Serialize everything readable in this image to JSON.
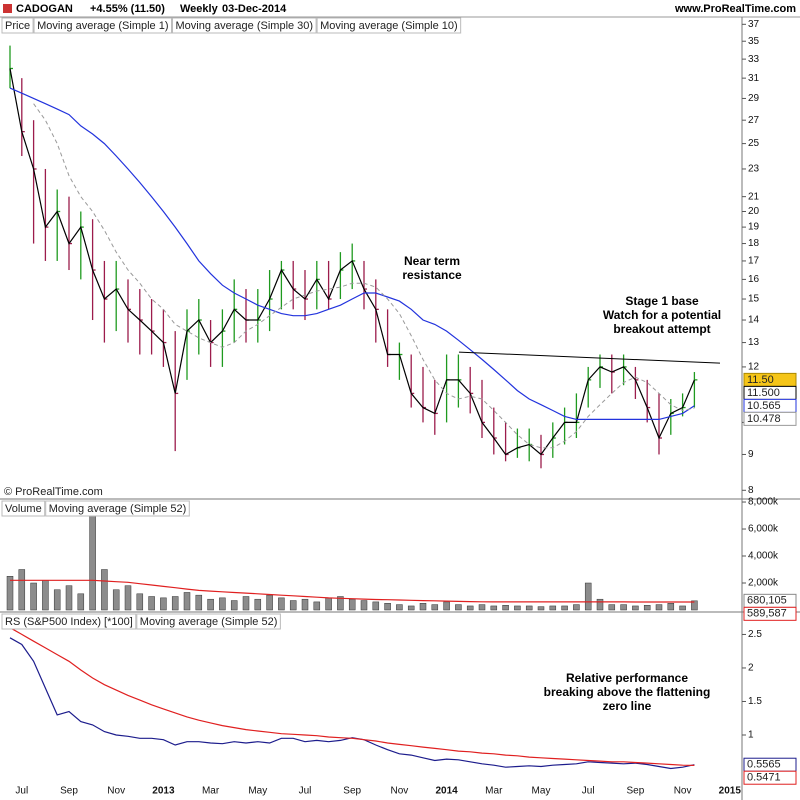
{
  "header": {
    "symbol": "CADOGAN",
    "change": "+4.55% (11.50)",
    "period": "Weekly",
    "date": "03-Dec-2014",
    "site": "www.ProRealTime.com"
  },
  "watermark": "© ProRealTime.com",
  "chart_data": [
    {
      "type": "ohlc",
      "name": "Price",
      "log_scale": true,
      "ylim": [
        7.8,
        37.9
      ],
      "yticks": [
        8,
        9,
        10,
        12,
        13,
        14,
        15,
        16,
        17,
        18,
        19,
        20,
        21,
        23,
        25,
        27,
        29,
        31,
        33,
        35,
        37
      ],
      "up_color": "#1f9a1f",
      "down_color": "#9c1c4c",
      "tag_color": "#f5c518",
      "high": [
        34.5,
        31,
        27,
        23,
        21.5,
        21,
        20,
        19.5,
        17,
        17,
        16,
        15.5,
        15,
        14.5,
        13.5,
        14.5,
        15,
        14,
        14.5,
        16,
        15.5,
        15.5,
        16.5,
        17,
        17,
        16.5,
        17,
        17,
        17.5,
        18,
        17,
        16,
        14.5,
        13,
        12.5,
        12,
        11.5,
        12.5,
        12.5,
        12,
        11.5,
        10.5,
        10,
        9.8,
        9.8,
        9.6,
        10,
        10.5,
        11,
        12,
        12.5,
        12.5,
        12.5,
        12,
        11.5,
        11,
        10.8,
        11,
        11.8,
        null,
        null,
        null
      ],
      "low": [
        30,
        24,
        18,
        17,
        17,
        16.5,
        16,
        14,
        13,
        13.5,
        13,
        12.5,
        12.5,
        12,
        9.1,
        11.5,
        12.5,
        12,
        12,
        13,
        13,
        13,
        13.5,
        14.5,
        14.5,
        14,
        14.5,
        14.5,
        15,
        15.5,
        14.5,
        13,
        12,
        11.5,
        10.5,
        10,
        9.6,
        10,
        10.5,
        10.3,
        9.5,
        9,
        8.8,
        8.9,
        8.8,
        8.6,
        8.9,
        9.3,
        9.5,
        10.5,
        11.2,
        11,
        11.3,
        10.8,
        10,
        9,
        9.6,
        10.2,
        10.5,
        null,
        null,
        null
      ],
      "close": [
        32,
        26,
        23,
        19,
        20,
        18,
        19,
        16.5,
        15,
        15.5,
        14.5,
        14,
        13.5,
        13,
        11,
        13.5,
        14,
        13,
        13.5,
        14.5,
        14,
        14,
        15,
        16.5,
        15.5,
        15,
        16,
        15,
        16.5,
        17,
        15.5,
        14.5,
        12.5,
        12.5,
        11,
        10.5,
        10.3,
        11.5,
        11.5,
        11,
        10,
        9.5,
        9,
        9.2,
        9.3,
        9,
        9.5,
        10,
        10,
        11.5,
        12,
        11.8,
        12,
        11.5,
        10.5,
        9.5,
        10.3,
        10.5,
        11.5,
        null,
        null,
        null
      ],
      "last_label": "11.50",
      "series": [
        {
          "name": "Moving average (Simple 1)",
          "color": "#000000",
          "legend_color": "#1c1c8c",
          "dash": false,
          "last_label": "11.500",
          "values": [
            32,
            26,
            23,
            19,
            20,
            18,
            19,
            16.5,
            15,
            15.5,
            14.5,
            14,
            13.5,
            13,
            11,
            13.5,
            14,
            13,
            13.5,
            14.5,
            14,
            14,
            15,
            16.5,
            15.5,
            15,
            16,
            15,
            16.5,
            17,
            15.5,
            14.5,
            12.5,
            12.5,
            11,
            10.5,
            10.3,
            11.5,
            11.5,
            11,
            10,
            9.5,
            9,
            9.2,
            9.3,
            9,
            9.5,
            10,
            10,
            11.5,
            12,
            11.8,
            12,
            11.5,
            10.5,
            9.5,
            10.3,
            10.5,
            11.5,
            null,
            null,
            null
          ]
        },
        {
          "name": "Moving average (Simple 30)",
          "color": "#2233dd",
          "legend_color": "#2233dd",
          "dash": false,
          "last_label": "10.565",
          "values": [
            30,
            29.5,
            29,
            28.5,
            28,
            27.5,
            26.5,
            25.8,
            25,
            24,
            23,
            22,
            21,
            20,
            19,
            18,
            17,
            16.3,
            15.7,
            15.3,
            15,
            14.7,
            14.5,
            14.3,
            14.2,
            14.2,
            14.3,
            14.5,
            14.7,
            15,
            15.3,
            15.3,
            15.1,
            14.9,
            14.5,
            14,
            13.8,
            13.5,
            13.1,
            12.7,
            12.3,
            11.9,
            11.5,
            11.1,
            10.8,
            10.6,
            10.4,
            10.2,
            10.1,
            10.1,
            10.1,
            10.1,
            10.1,
            10.1,
            10.1,
            10.1,
            10.2,
            10.3,
            10.565,
            null,
            null,
            null
          ]
        },
        {
          "name": "Moving average (Simple 10)",
          "color": "#9a9a9a",
          "legend_color": "#a0a0a0",
          "dash": true,
          "last_label": "10.478",
          "values": [
            null,
            null,
            28.5,
            27,
            25,
            22.5,
            21,
            20,
            18.8,
            17.5,
            16.5,
            15.8,
            15,
            14.5,
            13.8,
            13.5,
            13.2,
            13,
            12.8,
            13,
            13.5,
            13.8,
            14.2,
            14.6,
            15,
            15.2,
            15.4,
            15.5,
            15.6,
            15.8,
            15.8,
            15.6,
            15,
            14.3,
            13.3,
            12.3,
            11.5,
            11,
            10.8,
            10.9,
            10.8,
            10.4,
            10,
            9.6,
            9.3,
            9.2,
            9.2,
            9.4,
            9.7,
            10.2,
            10.6,
            11,
            11.4,
            11.6,
            11.4,
            11,
            10.6,
            10.4,
            10.478,
            null,
            null,
            null
          ]
        }
      ],
      "trendline": [
        12.6,
        12.15
      ],
      "annotations": [
        [
          "Near term",
          "resistance"
        ],
        [
          "Stage 1 base",
          "Watch for a potential",
          "breakout attempt"
        ]
      ]
    },
    {
      "type": "bar",
      "name": "Volume",
      "color": "#8c8c8c",
      "legend_color": "#999999",
      "ylim": [
        0,
        8150000
      ],
      "yticks": [
        {
          "value": 2000000,
          "label": "2,000k"
        },
        {
          "value": 4000000,
          "label": "4,000k"
        },
        {
          "value": 6000000,
          "label": "6,000k"
        },
        {
          "value": 8000000,
          "label": "8,000k"
        }
      ],
      "values": [
        2500000,
        3000000,
        2000000,
        2200000,
        1500000,
        1800000,
        1200000,
        8000000,
        3000000,
        1500000,
        1800000,
        1200000,
        1000000,
        900000,
        1000000,
        1300000,
        1100000,
        800000,
        900000,
        700000,
        1000000,
        800000,
        1100000,
        900000,
        700000,
        800000,
        600000,
        900000,
        1000000,
        800000,
        700000,
        600000,
        500000,
        400000,
        300000,
        500000,
        400000,
        600000,
        400000,
        300000,
        400000,
        300000,
        350000,
        300000,
        300000,
        250000,
        300000,
        300000,
        400000,
        2000000,
        800000,
        400000,
        400000,
        300000,
        350000,
        400000,
        500000,
        300000,
        680105,
        null,
        null,
        null
      ],
      "last_label": "680,105",
      "series": [
        {
          "name": "Moving average (Simple 52)",
          "color": "#e02020",
          "legend_color": "#e02020",
          "dash": false,
          "last_label": "589,587",
          "values": [
            2200000,
            2200000,
            2200000,
            2200000,
            2200000,
            2200000,
            2200000,
            2200000,
            2150000,
            2100000,
            2050000,
            1950000,
            1850000,
            1750000,
            1650000,
            1550000,
            1450000,
            1400000,
            1350000,
            1300000,
            1250000,
            1200000,
            1150000,
            1100000,
            1050000,
            1000000,
            950000,
            900000,
            870000,
            840000,
            810000,
            780000,
            760000,
            740000,
            720000,
            700000,
            680000,
            660000,
            640000,
            620000,
            610000,
            600000,
            600000,
            600000,
            600000,
            600000,
            600000,
            600000,
            600000,
            600000,
            600000,
            600000,
            600000,
            595000,
            595000,
            592000,
            590000,
            590000,
            589587,
            null,
            null,
            null
          ]
        }
      ]
    },
    {
      "type": "line",
      "ylim": [
        0.06,
        2.82
      ],
      "yticks": [
        1,
        1.5,
        2,
        2.5
      ],
      "categories": [
        null,
        "Jul",
        null,
        null,
        null,
        "Sep",
        null,
        null,
        null,
        "Nov",
        null,
        null,
        null,
        "2013",
        null,
        null,
        null,
        "Mar",
        null,
        null,
        null,
        "May",
        null,
        null,
        null,
        "Jul",
        null,
        null,
        null,
        "Sep",
        null,
        null,
        null,
        "Nov",
        null,
        null,
        null,
        "2014",
        null,
        null,
        null,
        "Mar",
        null,
        null,
        null,
        "May",
        null,
        null,
        null,
        "Jul",
        null,
        null,
        null,
        "Sep",
        null,
        null,
        null,
        "Nov",
        null,
        null,
        null,
        "2015"
      ],
      "series": [
        {
          "name": "RS (S&P500 Index) [*100]",
          "color": "#1c1c8c",
          "legend_color": "#1c1c8c",
          "dash": false,
          "last_label": "0.5565",
          "values": [
            2.45,
            2.35,
            2.1,
            1.7,
            1.3,
            1.35,
            1.2,
            1.15,
            1.05,
            1.0,
            0.98,
            0.95,
            0.95,
            0.93,
            0.85,
            0.9,
            0.9,
            0.88,
            0.87,
            0.9,
            0.88,
            0.9,
            0.88,
            0.95,
            0.95,
            0.9,
            0.92,
            0.9,
            0.92,
            0.96,
            0.93,
            0.85,
            0.78,
            0.72,
            0.7,
            0.66,
            0.62,
            0.64,
            0.63,
            0.6,
            0.57,
            0.55,
            0.52,
            0.53,
            0.54,
            0.53,
            0.55,
            0.56,
            0.57,
            0.6,
            0.59,
            0.58,
            0.57,
            0.58,
            0.56,
            0.53,
            0.5,
            0.52,
            0.5565,
            null,
            null,
            null
          ]
        },
        {
          "name": "Moving average (Simple 52)",
          "color": "#e02020",
          "legend_color": "#e02020",
          "dash": false,
          "last_label": "0.5471",
          "values": [
            2.6,
            2.5,
            2.4,
            2.3,
            2.2,
            2.1,
            1.97,
            1.85,
            1.75,
            1.67,
            1.59,
            1.52,
            1.45,
            1.39,
            1.33,
            1.27,
            1.22,
            1.18,
            1.14,
            1.11,
            1.08,
            1.06,
            1.04,
            1.02,
            1.01,
            1.0,
            0.99,
            0.97,
            0.96,
            0.95,
            0.93,
            0.91,
            0.88,
            0.86,
            0.84,
            0.82,
            0.8,
            0.78,
            0.76,
            0.75,
            0.73,
            0.72,
            0.7,
            0.69,
            0.67,
            0.66,
            0.65,
            0.64,
            0.63,
            0.62,
            0.61,
            0.6,
            0.6,
            0.59,
            0.58,
            0.57,
            0.56,
            0.55,
            0.5471,
            null,
            null,
            null
          ]
        }
      ],
      "annotations": [
        [
          "Relative performance",
          "breaking above the flattening",
          "zero line"
        ]
      ]
    }
  ]
}
